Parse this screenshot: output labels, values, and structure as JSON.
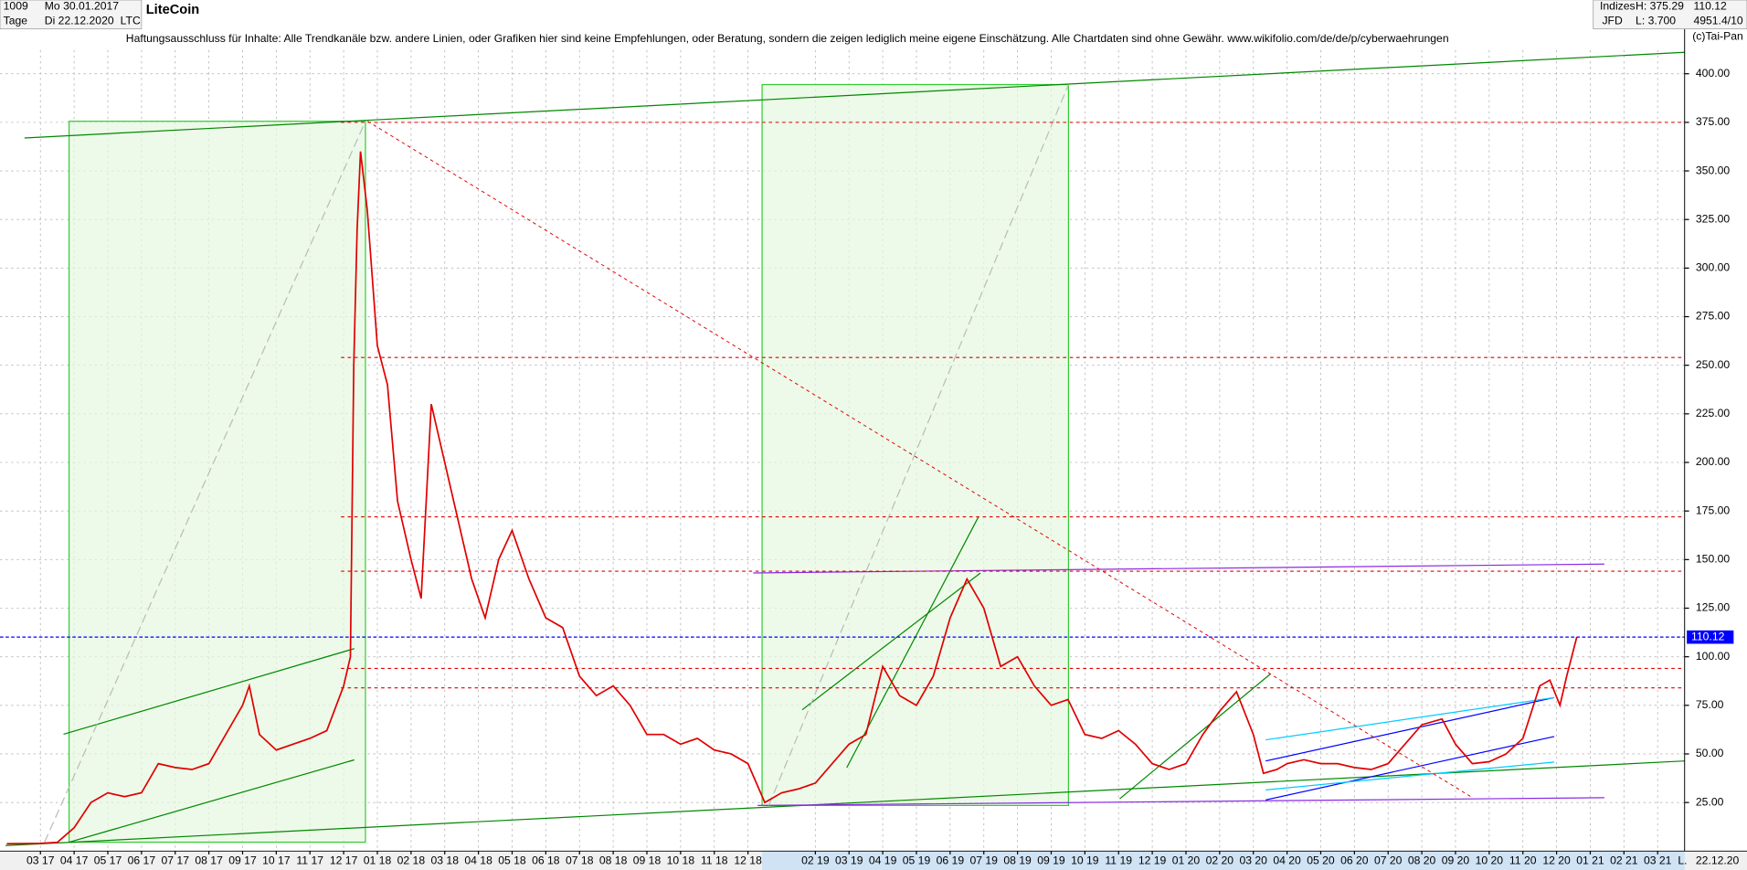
{
  "header": {
    "id": "1009",
    "date_from": "Mo 30.01.2017",
    "period": "Tage",
    "date_to": "Di 22.12.2020",
    "symbol": "LTC",
    "market": "Indizes",
    "broker": "JFD",
    "high": "H: 375.29",
    "low": "L: 3.700",
    "last": "110.12",
    "zoom": "4951.4/10",
    "copyright": "(c)Tai-Pan",
    "disclaimer": "Haftungsausschluss für Inhalte: Alle Trendkanäle bzw. andere Linien, oder Grafiken hier sind keine Empfehlungen, oder Beratung, sondern die zeigen lediglich meine eigene Einschätzung. Alle Chartdaten sind ohne Gewähr.  www.wikifolio.com/de/de/p/cyberwaehrungen",
    "end_date": "22.12.20",
    "axis_mode": "L."
  },
  "chart_data": {
    "type": "line",
    "title": "LiteCoin",
    "x": [
      -1,
      0,
      0.5,
      1,
      1.5,
      2,
      2.5,
      3,
      3.5,
      4,
      4.5,
      5,
      5.5,
      6,
      6.2,
      6.5,
      7,
      7.5,
      8,
      8.5,
      9,
      9.2,
      9.3,
      9.4,
      9.5,
      9.7,
      10,
      10.3,
      10.6,
      11,
      11.3,
      11.6,
      12,
      12.4,
      12.8,
      13.2,
      13.6,
      14,
      14.5,
      15,
      15.5,
      16,
      16.5,
      17,
      17.5,
      18,
      18.5,
      19,
      19.5,
      20,
      20.5,
      21,
      21.5,
      22,
      22.5,
      23,
      23.5,
      24,
      24.5,
      25,
      25.5,
      26,
      26.5,
      27,
      27.5,
      28,
      28.5,
      29,
      29.5,
      30,
      30.5,
      31,
      31.5,
      32,
      32.5,
      33,
      33.5,
      34,
      34.5,
      35,
      35.5,
      36,
      36.3,
      36.7,
      37,
      37.5,
      38,
      38.5,
      39,
      39.5,
      40,
      40.5,
      41,
      41.6,
      42,
      42.5,
      43,
      43.5,
      44,
      44.5,
      44.8,
      45.1,
      45.3,
      45.6
    ],
    "series": [
      {
        "name": "LTC",
        "color": "#e00000",
        "values": [
          3.8,
          4,
          4.5,
          12,
          25,
          30,
          28,
          30,
          45,
          43,
          42,
          45,
          60,
          75,
          85,
          60,
          52,
          55,
          58,
          62,
          85,
          100,
          250,
          320,
          360,
          330,
          260,
          240,
          180,
          150,
          130,
          230,
          200,
          170,
          140,
          120,
          150,
          165,
          140,
          120,
          115,
          90,
          80,
          85,
          75,
          60,
          60,
          55,
          58,
          52,
          50,
          45,
          25,
          30,
          32,
          35,
          45,
          55,
          60,
          95,
          80,
          75,
          90,
          120,
          140,
          125,
          95,
          100,
          85,
          75,
          78,
          60,
          58,
          62,
          55,
          45,
          42,
          45,
          60,
          72,
          82,
          60,
          40,
          42,
          45,
          47,
          45,
          45,
          43,
          42,
          45,
          55,
          65,
          68,
          55,
          45,
          46,
          50,
          58,
          85,
          88,
          75,
          90,
          110.12
        ]
      }
    ],
    "xlim": [
      -1.2,
      48.8
    ],
    "xticks": [
      {
        "value": 0,
        "label": "03 17"
      },
      {
        "value": 1,
        "label": "04 17"
      },
      {
        "value": 2,
        "label": "05 17"
      },
      {
        "value": 3,
        "label": "06 17"
      },
      {
        "value": 4,
        "label": "07 17"
      },
      {
        "value": 5,
        "label": "08 17"
      },
      {
        "value": 6,
        "label": "09 17"
      },
      {
        "value": 7,
        "label": "10 17"
      },
      {
        "value": 8,
        "label": "11 17"
      },
      {
        "value": 9,
        "label": "12 17"
      },
      {
        "value": 10,
        "label": "01 18"
      },
      {
        "value": 11,
        "label": "02 18"
      },
      {
        "value": 12,
        "label": "03 18"
      },
      {
        "value": 13,
        "label": "04 18"
      },
      {
        "value": 14,
        "label": "05 18"
      },
      {
        "value": 15,
        "label": "06 18"
      },
      {
        "value": 16,
        "label": "07 18"
      },
      {
        "value": 17,
        "label": "08 18"
      },
      {
        "value": 18,
        "label": "09 18"
      },
      {
        "value": 19,
        "label": "10 18"
      },
      {
        "value": 20,
        "label": "11 18"
      },
      {
        "value": 21,
        "label": "12 18"
      },
      {
        "value": 23,
        "label": "02 19"
      },
      {
        "value": 24,
        "label": "03 19"
      },
      {
        "value": 25,
        "label": "04 19"
      },
      {
        "value": 26,
        "label": "05 19"
      },
      {
        "value": 27,
        "label": "06 19"
      },
      {
        "value": 28,
        "label": "07 19"
      },
      {
        "value": 29,
        "label": "08 19"
      },
      {
        "value": 30,
        "label": "09 19"
      },
      {
        "value": 31,
        "label": "10 19"
      },
      {
        "value": 32,
        "label": "11 19"
      },
      {
        "value": 33,
        "label": "12 19"
      },
      {
        "value": 34,
        "label": "01 20"
      },
      {
        "value": 35,
        "label": "02 20"
      },
      {
        "value": 36,
        "label": "03 20"
      },
      {
        "value": 37,
        "label": "04 20"
      },
      {
        "value": 38,
        "label": "05 20"
      },
      {
        "value": 39,
        "label": "06 20"
      },
      {
        "value": 40,
        "label": "07 20"
      },
      {
        "value": 41,
        "label": "08 20"
      },
      {
        "value": 42,
        "label": "09 20"
      },
      {
        "value": 43,
        "label": "10 20"
      },
      {
        "value": 44,
        "label": "11 20"
      },
      {
        "value": 45,
        "label": "12 20"
      },
      {
        "value": 46,
        "label": "01 21"
      },
      {
        "value": 47,
        "label": "02 21"
      },
      {
        "value": 48,
        "label": "03 21"
      }
    ],
    "ylim": [
      0,
      400
    ],
    "yticks": [
      {
        "value": 25,
        "label": "25.00"
      },
      {
        "value": 50,
        "label": "50.00"
      },
      {
        "value": 75,
        "label": "75.00"
      },
      {
        "value": 100,
        "label": "100.00"
      },
      {
        "value": 125,
        "label": "125.00"
      },
      {
        "value": 150,
        "label": "150.00"
      },
      {
        "value": 175,
        "label": "175.00"
      },
      {
        "value": 200,
        "label": "200.00"
      },
      {
        "value": 225,
        "label": "225.00"
      },
      {
        "value": 250,
        "label": "250.00"
      },
      {
        "value": 275,
        "label": "275.00"
      },
      {
        "value": 300,
        "label": "300.00"
      },
      {
        "value": 325,
        "label": "325.00"
      },
      {
        "value": 350,
        "label": "350.00"
      },
      {
        "value": 375,
        "label": "375.00"
      },
      {
        "value": 400,
        "label": "400.00"
      }
    ],
    "grid": true,
    "last_price": 110.12,
    "last_price_color": "#0000ff",
    "levels": [
      375,
      254,
      172,
      144,
      94,
      84
    ],
    "level_color": "#e00000"
  }
}
